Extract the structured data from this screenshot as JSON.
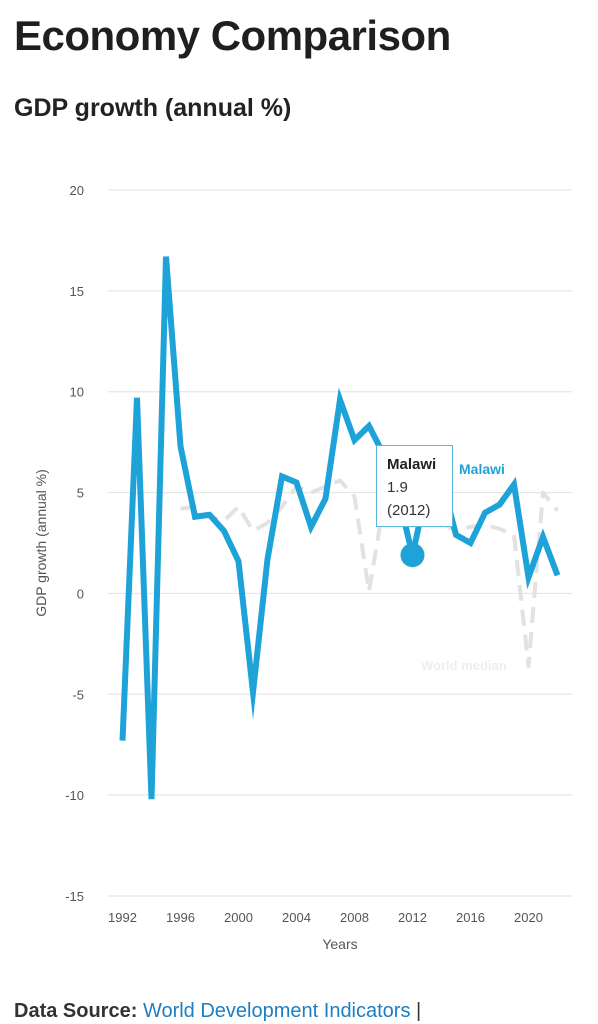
{
  "header": {
    "title": "Economy Comparison",
    "subtitle": "GDP growth (annual %)"
  },
  "tooltip": {
    "country": "Malawi",
    "value": "1.9",
    "year": "(2012)"
  },
  "footer": {
    "label": "Data Source:",
    "link": "World Development Indicators",
    "separator": "|"
  },
  "colors": {
    "malawi": "#1ea3d8",
    "world_median": "#e2e2e2",
    "grid": "#e6e6e6"
  },
  "chart_data": {
    "type": "line",
    "xlabel": "Years",
    "ylabel": "GDP growth (annual %)",
    "ylim": [
      -15,
      20
    ],
    "xlim": [
      1991,
      2023
    ],
    "y_ticks": [
      20,
      15,
      10,
      5,
      0,
      -5,
      -10,
      -15
    ],
    "x_ticks": [
      1992,
      1996,
      2000,
      2004,
      2008,
      2012,
      2016,
      2020
    ],
    "grid": true,
    "series": [
      {
        "name": "World median",
        "color": "#e2e2e2",
        "x": [
          1996,
          1997,
          1998,
          1999,
          2000,
          2001,
          2002,
          2003,
          2004,
          2005,
          2006,
          2007,
          2008,
          2009,
          2010,
          2011,
          2012,
          2013,
          2014,
          2015,
          2016,
          2017,
          2018,
          2019,
          2020,
          2021,
          2022
        ],
        "values": [
          4.2,
          4.3,
          3.8,
          3.6,
          4.3,
          3.1,
          3.5,
          4.3,
          5.3,
          5.0,
          5.3,
          5.6,
          4.8,
          0.1,
          4.4,
          4.1,
          3.9,
          3.6,
          3.5,
          3.1,
          3.3,
          3.4,
          3.2,
          2.9,
          -3.6,
          5.0,
          4.1
        ]
      },
      {
        "name": "Malawi",
        "color": "#1ea3d8",
        "x": [
          1992,
          1993,
          1994,
          1995,
          1996,
          1997,
          1998,
          1999,
          2000,
          2001,
          2002,
          2003,
          2004,
          2005,
          2006,
          2007,
          2008,
          2009,
          2010,
          2011,
          2012,
          2013,
          2014,
          2015,
          2016,
          2017,
          2018,
          2019,
          2020,
          2021,
          2022
        ],
        "values": [
          -7.3,
          9.7,
          -10.2,
          16.7,
          7.3,
          3.8,
          3.9,
          3.1,
          1.6,
          -4.9,
          1.7,
          5.8,
          5.5,
          3.3,
          4.7,
          9.6,
          7.6,
          8.3,
          6.9,
          4.9,
          1.9,
          5.2,
          5.7,
          2.9,
          2.5,
          4.0,
          4.4,
          5.4,
          0.8,
          2.8,
          0.9
        ]
      }
    ],
    "annotations": [
      "Malawi",
      "World median"
    ]
  }
}
